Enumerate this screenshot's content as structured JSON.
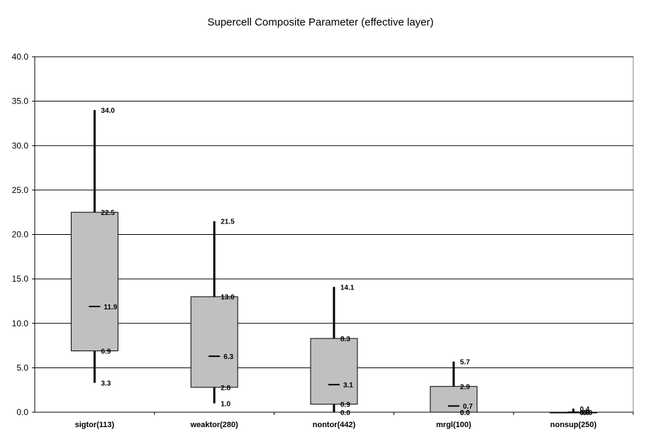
{
  "chart_data": {
    "type": "boxplot",
    "title": "Supercell Composite Parameter (effective layer)",
    "xlabel": "",
    "ylabel": "",
    "ylim": [
      0,
      40
    ],
    "yticks": [
      "0.0",
      "5.0",
      "10.0",
      "15.0",
      "20.0",
      "25.0",
      "30.0",
      "35.0",
      "40.0"
    ],
    "grid": true,
    "categories": [
      "sigtor(113)",
      "weaktor(280)",
      "nontor(442)",
      "mrgl(100)",
      "nonsup(250)"
    ],
    "series": [
      {
        "values": [
          {
            "min": 3.3,
            "q1": 6.9,
            "median": 11.9,
            "q3": 22.5,
            "max": 34.0
          },
          {
            "min": 1.0,
            "q1": 2.8,
            "median": 6.3,
            "q3": 13.0,
            "max": 21.5
          },
          {
            "min": 0.0,
            "q1": 0.9,
            "median": 3.1,
            "q3": 8.3,
            "max": 14.1
          },
          {
            "min": 0.0,
            "q1": 0.0,
            "median": 0.7,
            "q3": 2.9,
            "max": 5.7
          },
          {
            "min": 0.0,
            "q1": 0.0,
            "median": 0.0,
            "q3": 0.0,
            "max": 0.4
          }
        ]
      }
    ],
    "colors": {
      "box": "#c0c0c0",
      "border": "#000000",
      "grid": "#000000"
    }
  }
}
